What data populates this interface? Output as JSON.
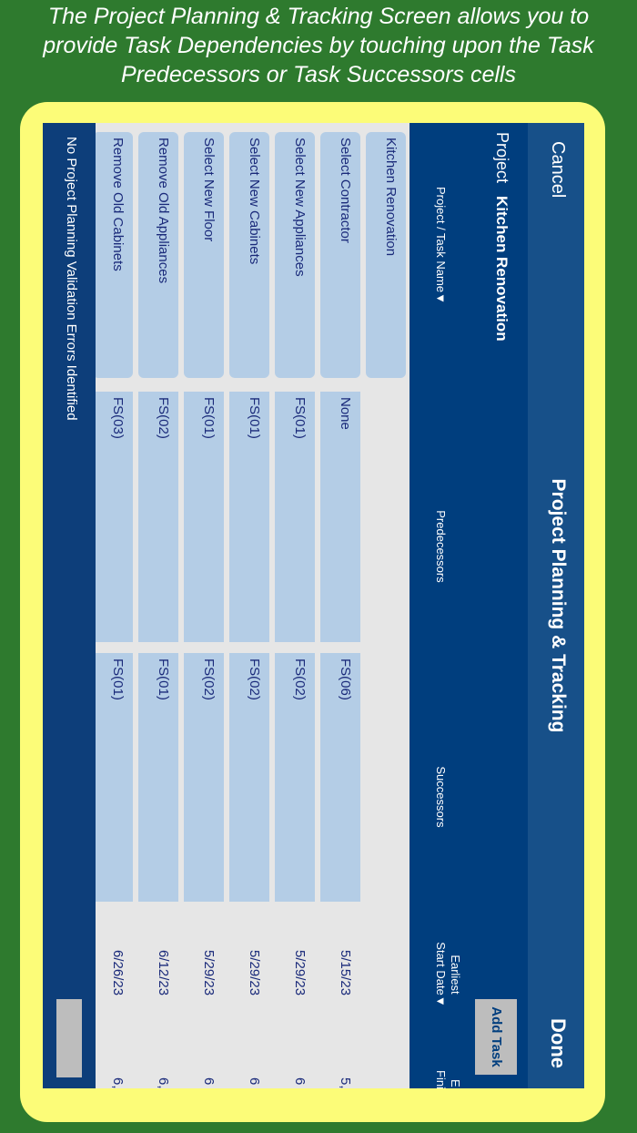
{
  "caption": [
    "The Project Planning & Tracking Screen allows you to",
    "provide Task Dependencies by touching upon the Task",
    "Predecessors or Task Successors cells"
  ],
  "nav": {
    "cancel": "Cancel",
    "title": "Project Planning & Tracking",
    "done": "Done"
  },
  "project": {
    "label": "Project",
    "name": "Kitchen Renovation",
    "add_task": "Add Task"
  },
  "columns": {
    "task": "Project / Task Name▼",
    "predecessors": "Predecessors",
    "successors": "Successors",
    "start_1": "Earliest",
    "start_2": "Start Date▼",
    "finish_1": "E",
    "finish_2": "Finis"
  },
  "rows": [
    {
      "task": "Kitchen Renovation"
    },
    {
      "task": "Select Contractor",
      "pred": "None",
      "succ": "FS(06)",
      "start": "5/15/23",
      "finish": "5,"
    },
    {
      "task": "Select New Appliances",
      "pred": "FS(01)",
      "succ": "FS(02)",
      "start": "5/29/23",
      "finish": "6"
    },
    {
      "task": "Select New Cabinets",
      "pred": "FS(01)",
      "succ": "FS(02)",
      "start": "5/29/23",
      "finish": "6"
    },
    {
      "task": "Select New Floor",
      "pred": "FS(01)",
      "succ": "FS(02)",
      "start": "5/29/23",
      "finish": "6"
    },
    {
      "task": "Remove Old Appliances",
      "pred": "FS(02)",
      "succ": "FS(01)",
      "start": "6/12/23",
      "finish": "6,"
    },
    {
      "task": "Remove Old Cabinets",
      "pred": "FS(03)",
      "succ": "FS(01)",
      "start": "6/26/23",
      "finish": "6,"
    }
  ],
  "status": "No Project Planning Validation Errors Identified"
}
